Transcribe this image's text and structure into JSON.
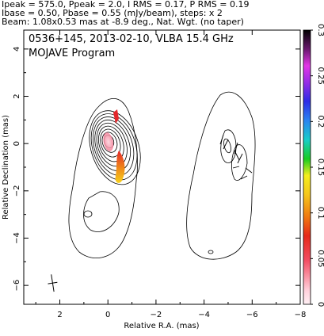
{
  "header": {
    "line1": "Ipeak = 575.0, Ppeak = 2.0, I RMS = 0.17, P RMS = 0.19",
    "line2": "Ibase = 0.50, Pbase = 0.55 (mJy/beam), steps: x 2",
    "line3": "Beam: 1.08x0.53 mas at -8.9 deg., Nat. Wgt. (no taper)"
  },
  "plot_title": {
    "line1": "0536+145, 2013-02-10, VLBA 15.4 GHz",
    "line2": "MOJAVE Program"
  },
  "chart_data": {
    "type": "contour",
    "xlabel": "Relative R.A. (mas)",
    "ylabel": "Relative Declination (mas)",
    "xlim": [
      3.5,
      -8.0
    ],
    "ylim": [
      -6.8,
      4.8
    ],
    "xticks": [
      2,
      0,
      -2,
      -4,
      -6,
      -8
    ],
    "yticks": [
      4,
      2,
      0,
      -2,
      -4,
      -6
    ],
    "colorbar": {
      "range": [
        0,
        0.3
      ],
      "ticks": [
        0,
        0.05,
        0.1,
        0.15,
        0.2,
        0.25,
        0.3
      ],
      "tick_labels": [
        "0",
        "0.05",
        "0.1",
        "0.15",
        "0.2",
        "0.25",
        "0.3"
      ]
    },
    "intensity_peak_mJy_per_beam": 575.0,
    "polarization_peak_mJy_per_beam": 2.0,
    "contour_base_mJy_per_beam": 0.5,
    "contour_step_factor": 2,
    "core_position_mas": [
      0,
      0
    ],
    "beam": {
      "major_mas": 1.08,
      "minor_mas": 0.53,
      "pa_deg": -8.9
    },
    "panels": [
      "total intensity with fractional polarization colour",
      "polarized intensity with EVPA ticks"
    ]
  },
  "colors": {
    "axis": "#000000",
    "contour": "#000000",
    "core_pol": "#f06a8a",
    "jet_pol_hot": "#e3262a",
    "jet_pol_warm": "#f7c51c"
  }
}
